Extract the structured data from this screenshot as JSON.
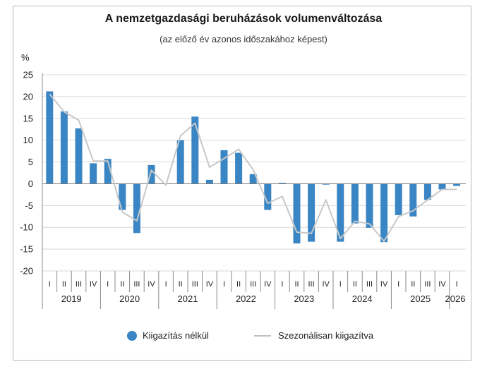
{
  "chart_data": {
    "type": "bar",
    "title": "A nemzetgazdasági beruházások volumenváltozása",
    "subtitle": "(az előző év azonos időszakához képest)",
    "ylabel": "%",
    "ylim": [
      -20,
      25
    ],
    "yticks": [
      25,
      20,
      15,
      10,
      5,
      0,
      -5,
      -10,
      -15,
      -20
    ],
    "grid": true,
    "legend_position": "bottom",
    "quarters": [
      "I",
      "II",
      "III",
      "IV",
      "I",
      "II",
      "III",
      "IV",
      "I",
      "II",
      "III",
      "IV",
      "I",
      "II",
      "III",
      "IV",
      "I",
      "II",
      "III",
      "IV",
      "I",
      "II",
      "III",
      "IV",
      "I",
      "II",
      "III",
      "IV",
      "I"
    ],
    "years": [
      "2019",
      "2020",
      "2021",
      "2022",
      "2023",
      "2024",
      "2025",
      "2026"
    ],
    "series": [
      {
        "name": "Kiigazítás nélkül",
        "type": "bar",
        "color": "#3a86c4",
        "values": [
          21.2,
          16.6,
          12.7,
          4.7,
          5.7,
          -6.0,
          -11.3,
          4.3,
          null,
          10.0,
          15.4,
          0.9,
          7.7,
          7.1,
          2.2,
          -6.0,
          0.2,
          -13.7,
          -13.3,
          -0.2,
          -13.3,
          -9.1,
          -10.1,
          -13.4,
          -7.2,
          -7.5,
          -3.7,
          -1.3,
          -0.5
        ]
      },
      {
        "name": "Szezonálisan kiigazítva",
        "type": "line",
        "color": "#c8c8c8",
        "values": [
          20.6,
          16.5,
          14.6,
          5.2,
          5.2,
          -6.5,
          -8.5,
          3.1,
          -0.3,
          11.0,
          13.9,
          3.8,
          5.8,
          7.9,
          3.2,
          -4.5,
          -2.9,
          -11.1,
          -11.4,
          -3.7,
          -12.6,
          -8.6,
          -9.2,
          -13.2,
          -7.5,
          -6.2,
          -3.7,
          -1.3,
          -1.3
        ]
      }
    ]
  }
}
